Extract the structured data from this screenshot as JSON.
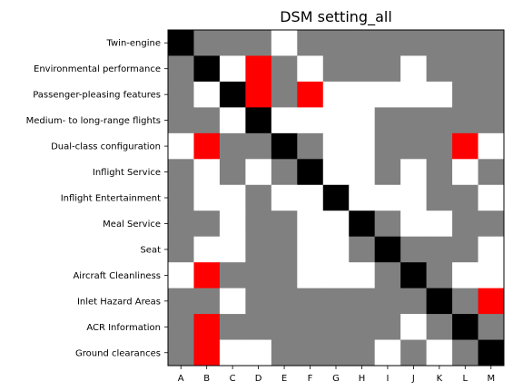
{
  "chart_data": {
    "type": "heatmap",
    "title": "DSM setting_all",
    "xlabel": "",
    "ylabel": "",
    "x_labels": [
      "A",
      "B",
      "C",
      "D",
      "E",
      "F",
      "G",
      "H",
      "I",
      "J",
      "K",
      "L",
      "M"
    ],
    "y_labels": [
      "Twin-engine",
      "Environmental performance",
      "Passenger-pleasing features",
      "Medium- to long-range flights",
      "Dual-class configuration",
      "Inflight Service",
      "Inflight Entertainment",
      "Meal Service",
      "Seat",
      "Aircraft Cleanliness",
      "Inlet Hazard Areas",
      "ACR Information",
      "Ground clearances"
    ],
    "legend": {
      "K": "diagonal",
      "G": "gray",
      "W": "white",
      "R": "red"
    },
    "colors": {
      "K": "#000000",
      "G": "#808080",
      "W": "#ffffff",
      "R": "#ff0000"
    },
    "matrix": [
      [
        "K",
        "G",
        "G",
        "G",
        "W",
        "G",
        "G",
        "G",
        "G",
        "G",
        "G",
        "G",
        "G"
      ],
      [
        "G",
        "K",
        "W",
        "R",
        "G",
        "W",
        "G",
        "G",
        "G",
        "W",
        "G",
        "G",
        "G"
      ],
      [
        "G",
        "W",
        "K",
        "R",
        "G",
        "R",
        "W",
        "W",
        "W",
        "W",
        "W",
        "G",
        "G"
      ],
      [
        "G",
        "G",
        "W",
        "K",
        "W",
        "W",
        "W",
        "W",
        "G",
        "G",
        "G",
        "G",
        "G"
      ],
      [
        "W",
        "R",
        "G",
        "G",
        "K",
        "G",
        "W",
        "W",
        "G",
        "G",
        "G",
        "R",
        "W"
      ],
      [
        "G",
        "W",
        "G",
        "W",
        "G",
        "K",
        "W",
        "W",
        "G",
        "W",
        "G",
        "W",
        "G"
      ],
      [
        "G",
        "W",
        "W",
        "G",
        "W",
        "W",
        "K",
        "W",
        "W",
        "W",
        "G",
        "G",
        "W"
      ],
      [
        "G",
        "G",
        "W",
        "G",
        "G",
        "W",
        "W",
        "K",
        "G",
        "W",
        "W",
        "G",
        "G"
      ],
      [
        "G",
        "W",
        "W",
        "G",
        "G",
        "W",
        "W",
        "G",
        "K",
        "G",
        "G",
        "G",
        "W"
      ],
      [
        "W",
        "R",
        "G",
        "G",
        "G",
        "W",
        "W",
        "W",
        "G",
        "K",
        "G",
        "W",
        "W"
      ],
      [
        "G",
        "G",
        "W",
        "G",
        "G",
        "G",
        "G",
        "G",
        "G",
        "G",
        "K",
        "G",
        "R"
      ],
      [
        "G",
        "R",
        "G",
        "G",
        "G",
        "G",
        "G",
        "G",
        "G",
        "W",
        "G",
        "K",
        "G"
      ],
      [
        "G",
        "R",
        "W",
        "W",
        "G",
        "G",
        "G",
        "G",
        "W",
        "G",
        "W",
        "G",
        "K"
      ]
    ]
  }
}
